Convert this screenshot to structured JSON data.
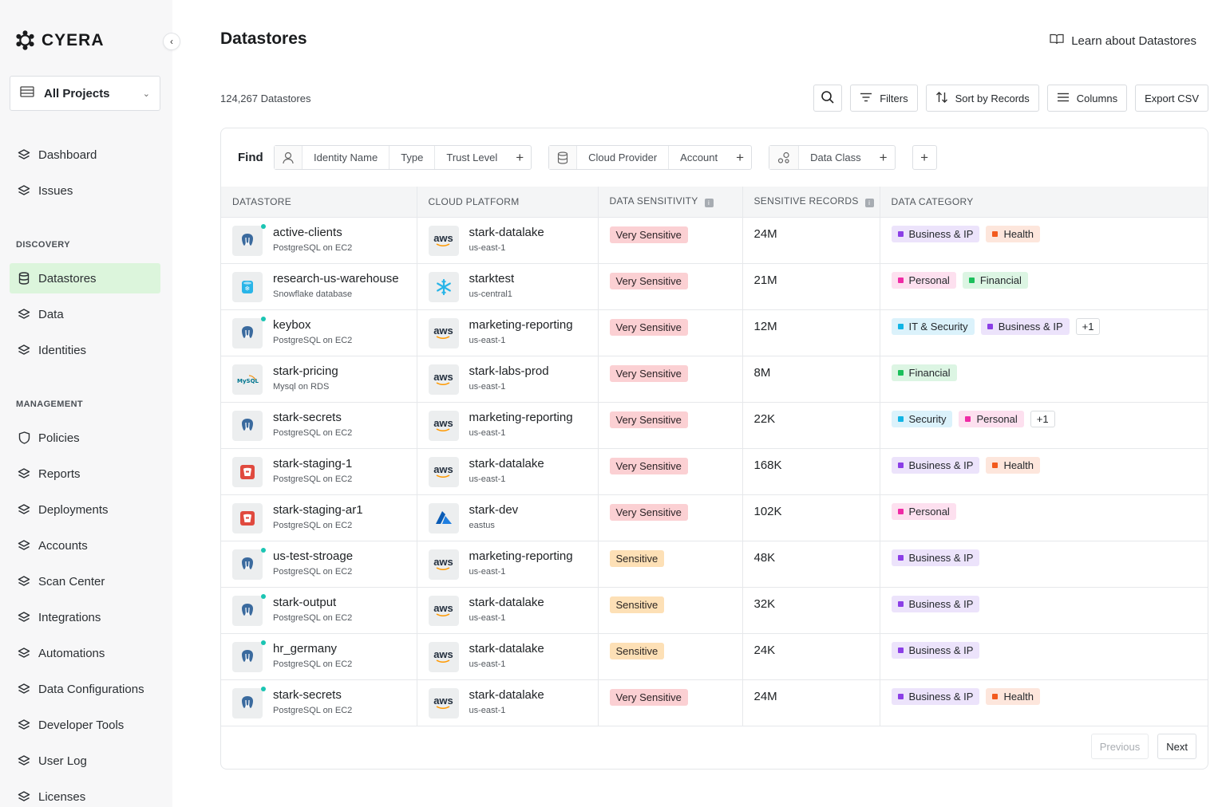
{
  "app": {
    "name": "CYERA"
  },
  "sidebar": {
    "project_select": "All Projects",
    "top_items": [
      {
        "label": "Dashboard"
      },
      {
        "label": "Issues"
      }
    ],
    "discovery_title": "DISCOVERY",
    "discovery_items": [
      {
        "label": "Datastores",
        "active": true
      },
      {
        "label": "Data"
      },
      {
        "label": "Identities"
      }
    ],
    "management_title": "MANAGEMENT",
    "management_items": [
      {
        "label": "Policies"
      },
      {
        "label": "Reports"
      },
      {
        "label": "Deployments"
      },
      {
        "label": "Accounts"
      },
      {
        "label": "Scan Center"
      },
      {
        "label": "Integrations"
      },
      {
        "label": "Automations"
      },
      {
        "label": "Data Configurations"
      },
      {
        "label": "Developer Tools"
      },
      {
        "label": "User Log"
      },
      {
        "label": "Licenses"
      }
    ]
  },
  "header": {
    "title": "Datastores",
    "learn_link": "Learn about Datastores",
    "count": "124,267 Datastores"
  },
  "toolbar": {
    "filters": "Filters",
    "sort": "Sort by Records",
    "columns": "Columns",
    "export": "Export CSV"
  },
  "find": {
    "label": "Find",
    "identity_group": [
      "Identity Name",
      "Type",
      "Trust Level"
    ],
    "cloud_group": [
      "Cloud Provider",
      "Account"
    ],
    "data_group": [
      "Data Class"
    ]
  },
  "table": {
    "columns": [
      "DATASTORE",
      "CLOUD PLATFORM",
      "DATA SENSITIVITY",
      "SENSITIVE RECORDS",
      "DATA CATEGORY"
    ],
    "rows": [
      {
        "name": "active-clients",
        "type": "PostgreSQL on EC2",
        "icon": "postgres-icon",
        "dot": true,
        "cloud_icon": "aws",
        "platform": "stark-datalake",
        "region": "us-east-1",
        "sensitivity": "Very Sensitive",
        "level": "very",
        "records": "24M",
        "cats": [
          {
            "label": "Business & IP",
            "color": "#8b3ee6",
            "bg": "#ece3fb"
          },
          {
            "label": "Health",
            "color": "#f25a1d",
            "bg": "#fde6dc"
          }
        ]
      },
      {
        "name": "research-us-warehouse",
        "type": "Snowflake database",
        "icon": "snowflake-db-icon",
        "dot": false,
        "cloud_icon": "snowflake",
        "platform": "starktest",
        "region": "us-central1",
        "sensitivity": "Very Sensitive",
        "level": "very",
        "records": "21M",
        "cats": [
          {
            "label": "Personal",
            "color": "#ef2ba5",
            "bg": "#fde0ef"
          },
          {
            "label": "Financial",
            "color": "#1bbf5b",
            "bg": "#dcf5e3"
          }
        ]
      },
      {
        "name": "keybox",
        "type": "PostgreSQL on EC2",
        "icon": "postgres-icon",
        "dot": true,
        "cloud_icon": "aws",
        "platform": "marketing-reporting",
        "region": "us-east-1",
        "sensitivity": "Very Sensitive",
        "level": "very",
        "records": "12M",
        "cats": [
          {
            "label": "IT & Security",
            "color": "#12b5e5",
            "bg": "#dbf2fb"
          },
          {
            "label": "Business & IP",
            "color": "#8b3ee6",
            "bg": "#ece3fb"
          }
        ],
        "more": "+1"
      },
      {
        "name": "stark-pricing",
        "type": "Mysql on RDS",
        "icon": "mysql-icon",
        "dot": false,
        "cloud_icon": "aws",
        "platform": "stark-labs-prod",
        "region": "us-east-1",
        "sensitivity": "Very Sensitive",
        "level": "very",
        "records": "8M",
        "cats": [
          {
            "label": "Financial",
            "color": "#1bbf5b",
            "bg": "#dcf5e3"
          }
        ]
      },
      {
        "name": "stark-secrets",
        "type": "PostgreSQL on EC2",
        "icon": "postgres-icon",
        "dot": false,
        "cloud_icon": "aws",
        "platform": "marketing-reporting",
        "region": "us-east-1",
        "sensitivity": "Very Sensitive",
        "level": "very",
        "records": "22K",
        "cats": [
          {
            "label": "Security",
            "color": "#12b5e5",
            "bg": "#dbf2fb"
          },
          {
            "label": "Personal",
            "color": "#ef2ba5",
            "bg": "#fde0ef"
          }
        ],
        "more": "+1"
      },
      {
        "name": "stark-staging-1",
        "type": "PostgreSQL on EC2",
        "icon": "s3-bucket-icon",
        "dot": false,
        "cloud_icon": "aws",
        "platform": "stark-datalake",
        "region": "us-east-1",
        "sensitivity": "Very Sensitive",
        "level": "very",
        "records": "168K",
        "cats": [
          {
            "label": "Business & IP",
            "color": "#8b3ee6",
            "bg": "#ece3fb"
          },
          {
            "label": "Health",
            "color": "#f25a1d",
            "bg": "#fde6dc"
          }
        ]
      },
      {
        "name": "stark-staging-ar1",
        "type": "PostgreSQL on EC2",
        "icon": "s3-bucket-icon",
        "dot": false,
        "cloud_icon": "azure",
        "platform": "stark-dev",
        "region": "eastus",
        "sensitivity": "Very Sensitive",
        "level": "very",
        "records": "102K",
        "cats": [
          {
            "label": "Personal",
            "color": "#ef2ba5",
            "bg": "#fde0ef"
          }
        ]
      },
      {
        "name": "us-test-stroage",
        "type": "PostgreSQL on EC2",
        "icon": "postgres-icon",
        "dot": true,
        "cloud_icon": "aws",
        "platform": "marketing-reporting",
        "region": "us-east-1",
        "sensitivity": "Sensitive",
        "level": "sens",
        "records": "48K",
        "cats": [
          {
            "label": "Business & IP",
            "color": "#8b3ee6",
            "bg": "#ece3fb"
          }
        ]
      },
      {
        "name": "stark-output",
        "type": "PostgreSQL on EC2",
        "icon": "postgres-icon",
        "dot": true,
        "cloud_icon": "aws",
        "platform": "stark-datalake",
        "region": "us-east-1",
        "sensitivity": "Sensitive",
        "level": "sens",
        "records": "32K",
        "cats": [
          {
            "label": "Business & IP",
            "color": "#8b3ee6",
            "bg": "#ece3fb"
          }
        ]
      },
      {
        "name": "hr_germany",
        "type": "PostgreSQL on EC2",
        "icon": "postgres-icon",
        "dot": true,
        "cloud_icon": "aws",
        "platform": "stark-datalake",
        "region": "us-east-1",
        "sensitivity": "Sensitive",
        "level": "sens",
        "records": "24K",
        "cats": [
          {
            "label": "Business & IP",
            "color": "#8b3ee6",
            "bg": "#ece3fb"
          }
        ]
      },
      {
        "name": "stark-secrets",
        "type": "PostgreSQL on EC2",
        "icon": "postgres-icon",
        "dot": true,
        "cloud_icon": "aws",
        "platform": "stark-datalake",
        "region": "us-east-1",
        "sensitivity": "Very Sensitive",
        "level": "very",
        "records": "24M",
        "cats": [
          {
            "label": "Business & IP",
            "color": "#8b3ee6",
            "bg": "#ece3fb"
          },
          {
            "label": "Health",
            "color": "#f25a1d",
            "bg": "#fde6dc"
          }
        ]
      }
    ]
  },
  "pager": {
    "previous": "Previous",
    "next": "Next"
  }
}
